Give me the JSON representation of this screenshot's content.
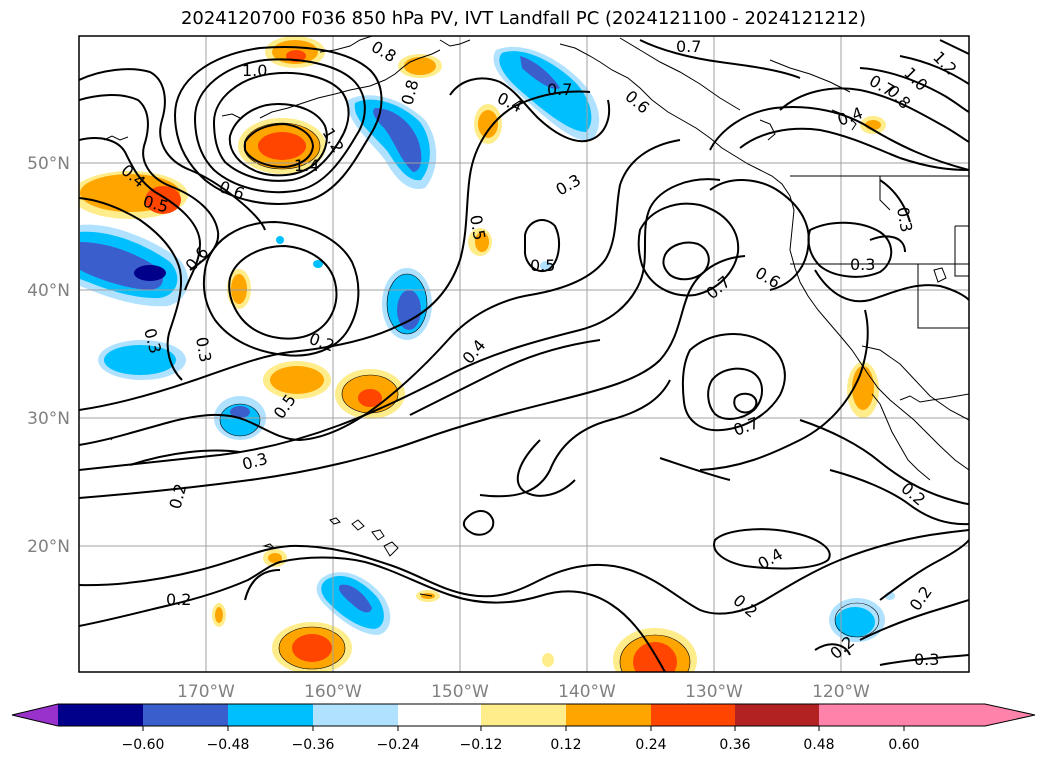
{
  "title": "2024120700 F036 850 hPa PV, IVT Landfall PC (2024121100 - 2024121212)",
  "lon_labels": [
    "170°W",
    "160°W",
    "150°W",
    "140°W",
    "130°W",
    "120°W"
  ],
  "lat_labels": [
    "50°N",
    "40°N",
    "30°N",
    "20°N"
  ],
  "contour_labels": [
    "1.0",
    "0.8",
    "1.2",
    "1.4",
    "0.6",
    "0.5",
    "0.4",
    "0.6",
    "0.3",
    "0.3",
    "0.2",
    "0.5",
    "0.4",
    "0.5",
    "0.3",
    "0.2",
    "0.2",
    "0.7",
    "0.4",
    "0.3",
    "0.5",
    "0.6",
    "0.7",
    "0.7",
    "0.6",
    "0.7",
    "0.8",
    "1.0",
    "1.2",
    "0.4",
    "0.3",
    "0.3",
    "0.2",
    "0.4",
    "0.2",
    "0.2",
    "0.2",
    "0.3",
    "0.7",
    "0.8"
  ],
  "colorbar": {
    "colors": [
      "#9932cc",
      "#00008b",
      "#3a5fcd",
      "#00bfff",
      "#b0e2ff",
      "#ffffff",
      "#ffec8b",
      "#ffa500",
      "#ff4500",
      "#b22222",
      "#ff82ab"
    ],
    "tick_labels": [
      "−0.60",
      "−0.48",
      "−0.36",
      "−0.24",
      "−0.12",
      "0.12",
      "0.24",
      "0.36",
      "0.48",
      "0.60"
    ]
  },
  "fill_colors": {
    "pos_light": "#ffec8b",
    "pos_mid": "#ffa500",
    "pos_strong": "#ff4500",
    "neg_light": "#b0e2ff",
    "neg_mid": "#00bfff",
    "neg_strong": "#3a5fcd",
    "neg_deep": "#00008b"
  }
}
